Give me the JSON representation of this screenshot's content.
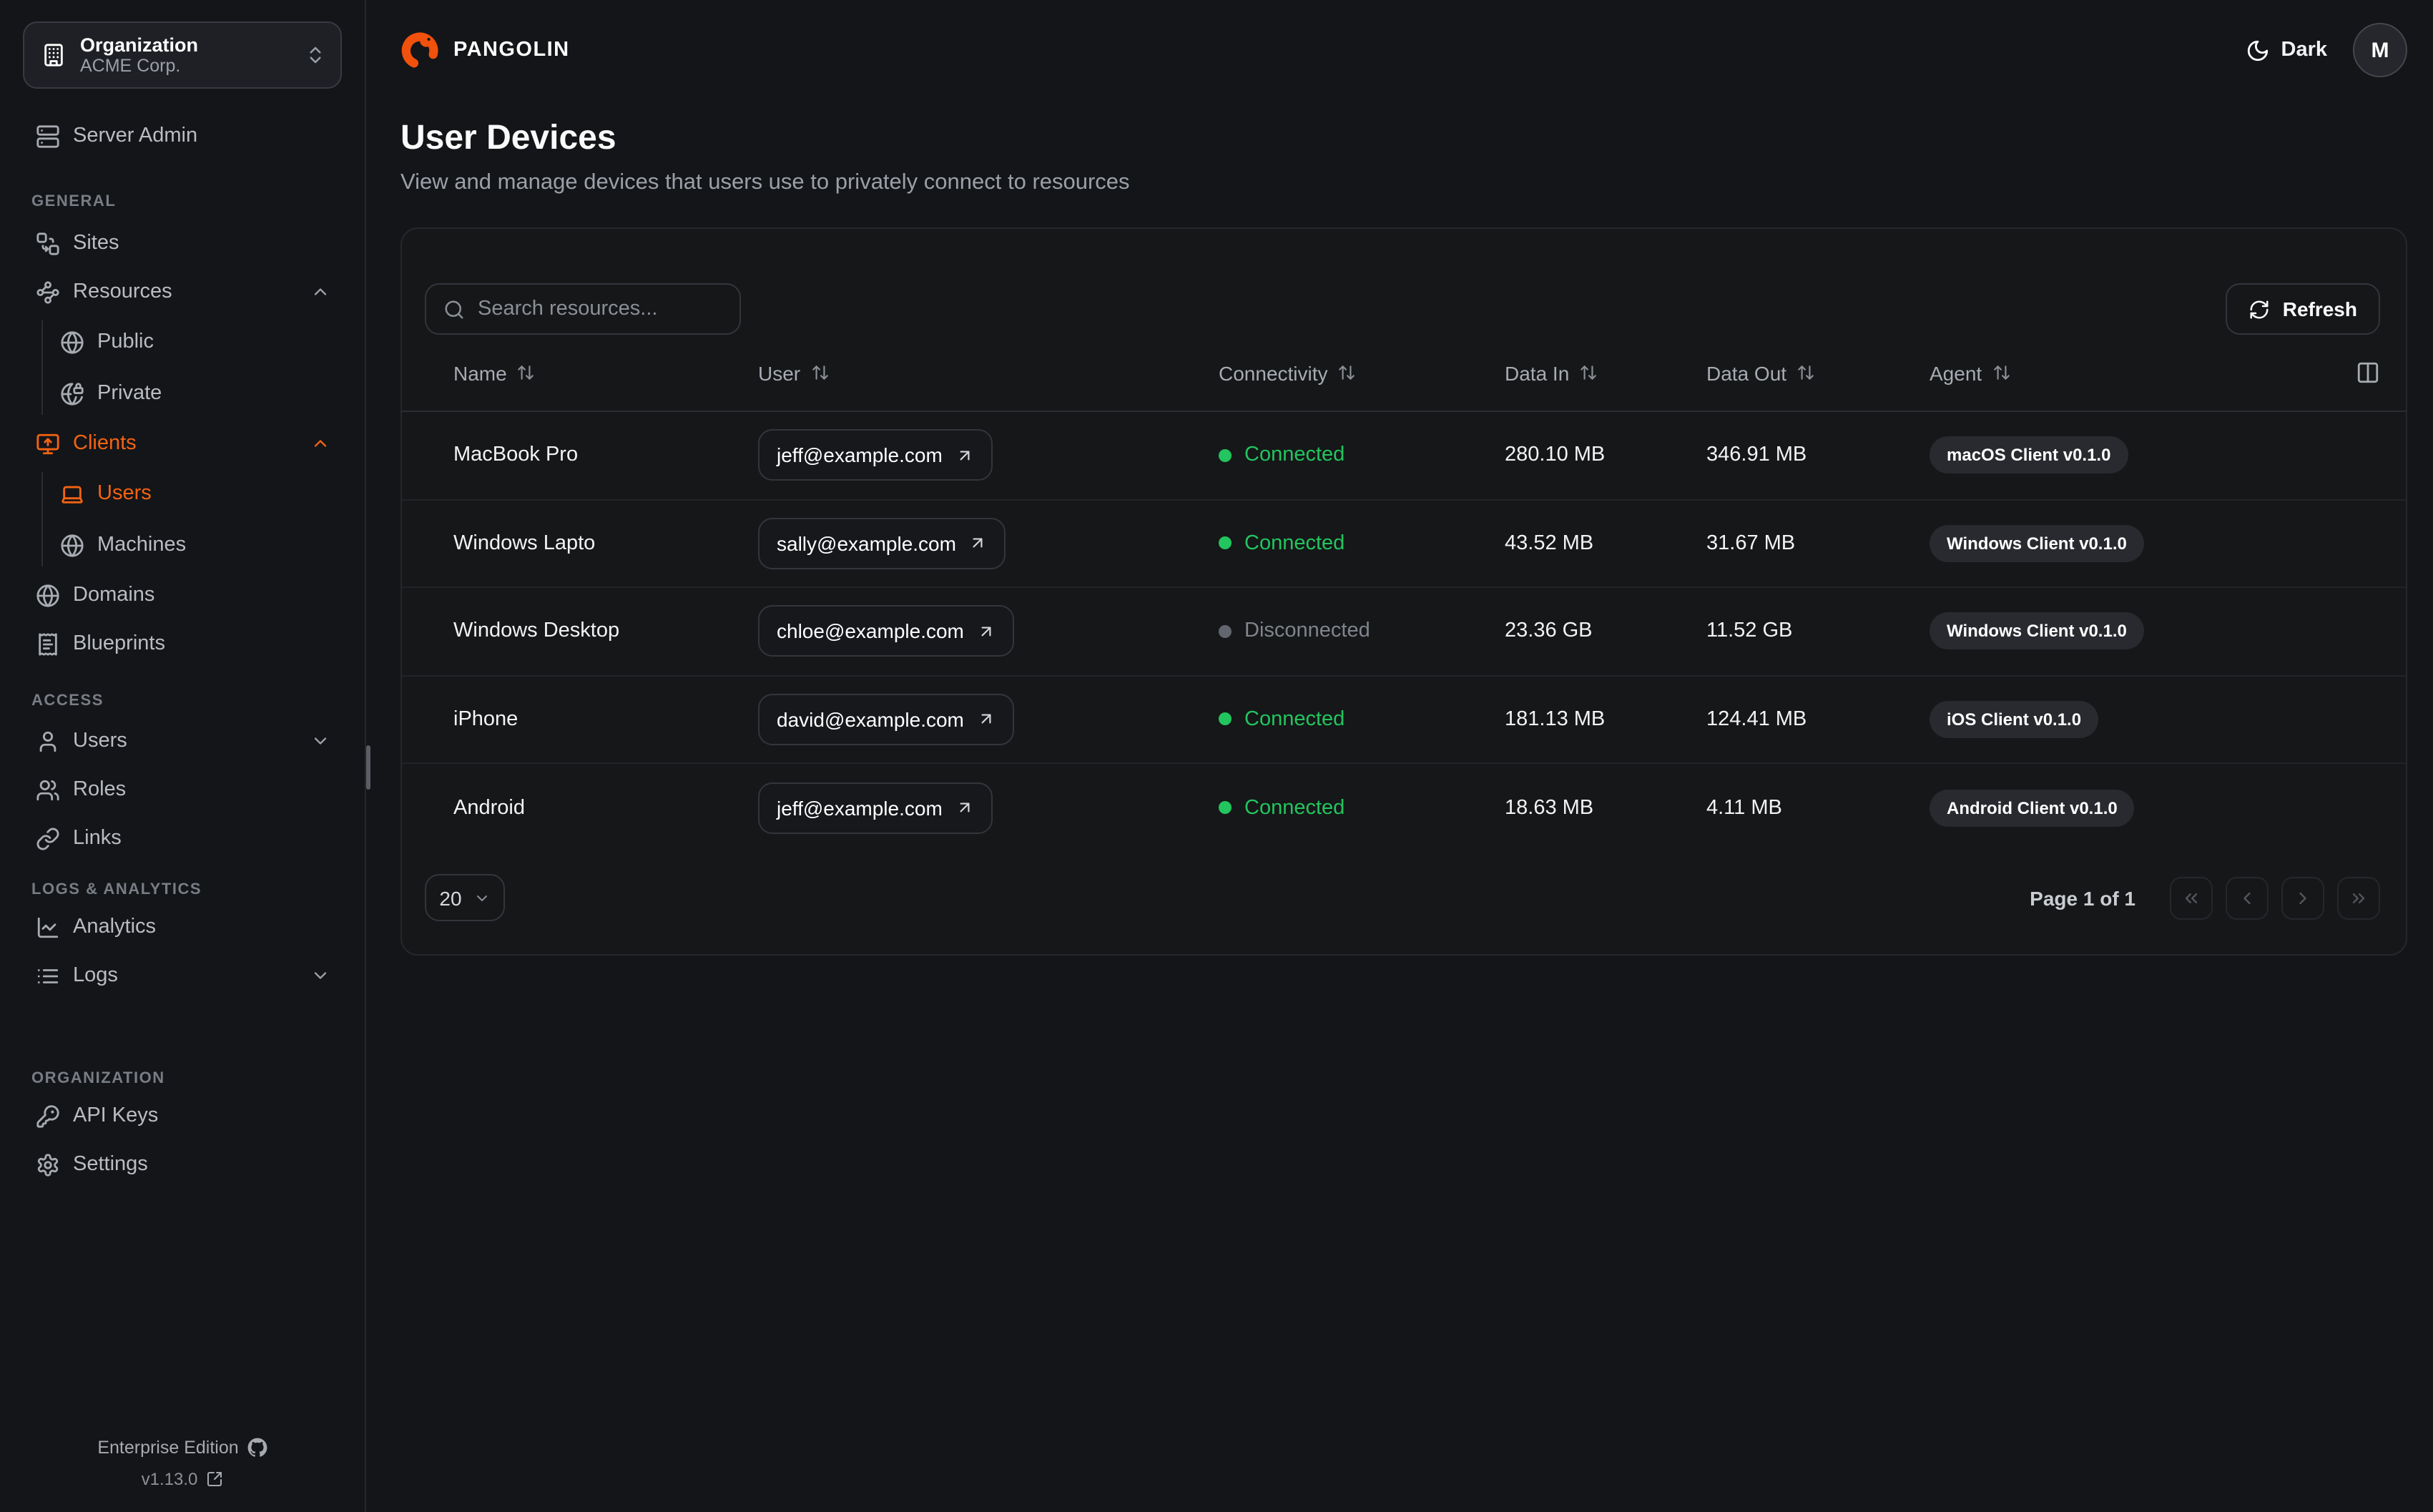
{
  "brand": {
    "name": "PANGOLIN"
  },
  "org_switcher": {
    "label": "Organization",
    "value": "ACME Corp."
  },
  "sidebar": {
    "server_admin": {
      "label": "Server Admin",
      "icon": "server-icon"
    },
    "sections": [
      {
        "label": "GENERAL",
        "items": [
          {
            "label": "Sites",
            "icon": "sites-icon"
          },
          {
            "label": "Resources",
            "icon": "resources-icon",
            "chevron": "up"
          },
          {
            "label": "Public",
            "icon": "globe-icon",
            "indent": true
          },
          {
            "label": "Private",
            "icon": "globe-lock-icon",
            "indent": true,
            "group_end": true
          },
          {
            "label": "Clients",
            "icon": "monitor-up-icon",
            "chevron": "up",
            "active": true
          },
          {
            "label": "Users",
            "icon": "laptop-icon",
            "indent": true,
            "active": true
          },
          {
            "label": "Machines",
            "icon": "server-icon",
            "indent": true,
            "group_end": true
          },
          {
            "label": "Domains",
            "icon": "globe-icon"
          },
          {
            "label": "Blueprints",
            "icon": "receipt-icon"
          }
        ]
      },
      {
        "label": "ACCESS",
        "items": [
          {
            "label": "Users",
            "icon": "user-icon",
            "chevron": "down"
          },
          {
            "label": "Roles",
            "icon": "users-icon"
          },
          {
            "label": "Links",
            "icon": "link-icon"
          }
        ]
      },
      {
        "label": "LOGS & ANALYTICS",
        "items": [
          {
            "label": "Analytics",
            "icon": "chart-line-icon"
          },
          {
            "label": "Logs",
            "icon": "list-icon",
            "chevron": "down"
          }
        ]
      },
      {
        "label": "ORGANIZATION",
        "items": [
          {
            "label": "API Keys",
            "icon": "key-icon"
          },
          {
            "label": "Settings",
            "icon": "gear-icon"
          }
        ]
      }
    ],
    "footer": {
      "edition": "Enterprise Edition",
      "version": "v1.13.0"
    }
  },
  "topbar": {
    "theme_label": "Dark",
    "avatar_initial": "M"
  },
  "page": {
    "title": "User Devices",
    "subtitle": "View and manage devices that users use to privately connect to resources"
  },
  "table": {
    "search_placeholder": "Search resources...",
    "refresh_label": "Refresh",
    "columns": [
      "Name",
      "User",
      "Connectivity",
      "Data In",
      "Data Out",
      "Agent"
    ],
    "rows": [
      {
        "name": "MacBook Pro",
        "user": "jeff@example.com",
        "connectivity": "Connected",
        "connected": true,
        "data_in": "280.10 MB",
        "data_out": "346.91 MB",
        "agent": "macOS Client v0.1.0"
      },
      {
        "name": "Windows Lapto",
        "user": "sally@example.com",
        "connectivity": "Connected",
        "connected": true,
        "data_in": "43.52 MB",
        "data_out": "31.67 MB",
        "agent": "Windows Client v0.1.0"
      },
      {
        "name": "Windows Desktop",
        "user": "chloe@example.com",
        "connectivity": "Disconnected",
        "connected": false,
        "data_in": "23.36 GB",
        "data_out": "11.52 GB",
        "agent": "Windows Client v0.1.0"
      },
      {
        "name": "iPhone",
        "user": "david@example.com",
        "connectivity": "Connected",
        "connected": true,
        "data_in": "181.13 MB",
        "data_out": "124.41 MB",
        "agent": "iOS Client v0.1.0"
      },
      {
        "name": "Android",
        "user": "jeff@example.com",
        "connectivity": "Connected",
        "connected": true,
        "data_in": "18.63 MB",
        "data_out": "4.11 MB",
        "agent": "Android Client v0.1.0"
      }
    ],
    "pagination": {
      "page_size": "20",
      "page_text": "Page 1 of 1"
    }
  },
  "colors": {
    "accent": "#f26312",
    "logo_orange": "#f0510c",
    "connected": "#22c55e",
    "disconnected": "#80848c"
  }
}
